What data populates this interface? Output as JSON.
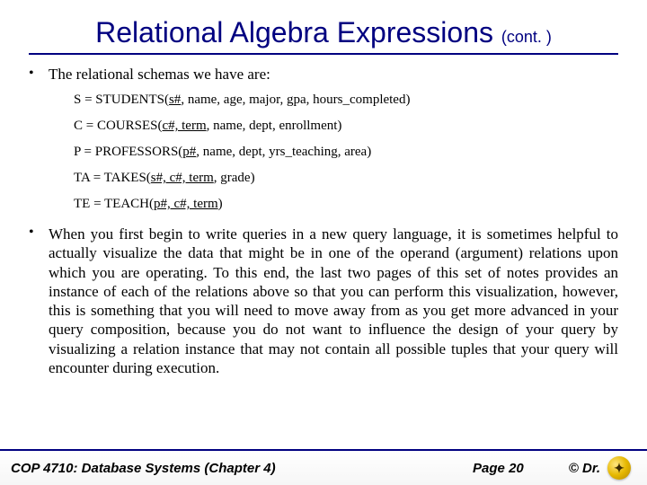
{
  "title_main": "Relational Algebra Expressions ",
  "title_cont": "(cont. )",
  "bullet1": "The relational schemas we have are:",
  "schemas": {
    "s_prefix": "S = STUDENTS(",
    "s_key": "s#",
    "s_rest": ", name, age, major, gpa, hours_completed)",
    "c_prefix": "C = COURSES(",
    "c_key": "c#, term",
    "c_rest": ", name, dept, enrollment)",
    "p_prefix": "P = PROFESSORS(",
    "p_key": "p#",
    "p_rest": ", name, dept, yrs_teaching, area)",
    "ta_prefix": "TA = TAKES(",
    "ta_key": "s#, c#, term",
    "ta_rest": ", grade)",
    "te_prefix": "TE = TEACH(",
    "te_key": "p#, c#, term",
    "te_rest": ")"
  },
  "bullet2": "When you first begin to write queries in a new query language, it is sometimes helpful to actually visualize the data that might be in one of the operand (argument) relations upon which you are operating.  To this end, the last two pages of this set of notes provides an instance of each of the relations above so that you can perform this visualization, however, this is something that you will need to move away from as you get more advanced in your query composition, because you do not want to influence the design of your query by visualizing a relation instance that may not contain all possible tuples that your query will encounter during execution.",
  "footer": {
    "course": "COP 4710: Database Systems  (Chapter 4)",
    "page": "Page 20",
    "copyright": "© Dr."
  },
  "colors": {
    "title": "#000080",
    "rule": "#000080"
  }
}
